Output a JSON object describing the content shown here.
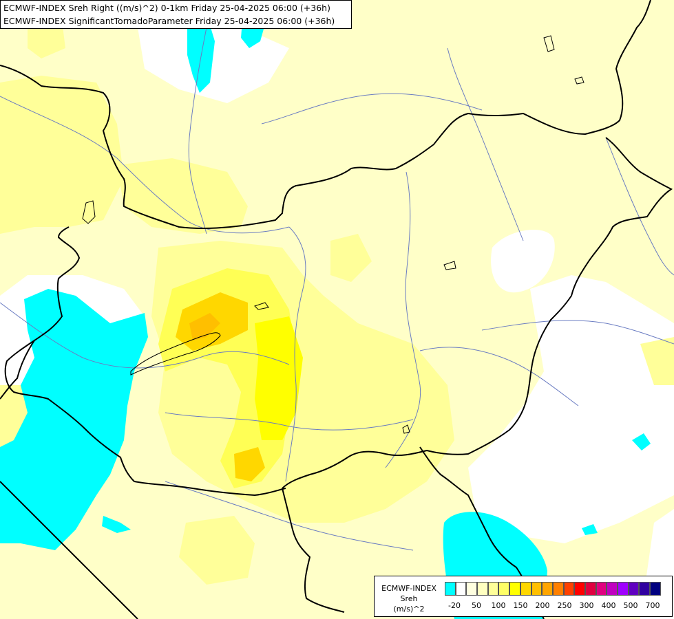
{
  "title": {
    "line1": "ECMWF-INDEX Sreh Right ((m/s)^2) 0-1km Friday 25-04-2025 06:00 (+36h)",
    "line2": "ECMWF-INDEX SignificantTornadoParameter Friday 25-04-2025 06:00 (+36h)"
  },
  "legend": {
    "line1": "ECMWF-INDEX",
    "line2": "Sreh",
    "line3": "(m/s)^2",
    "colors": [
      "#00ffff",
      "#ffffff",
      "#ffffe0",
      "#ffffc0",
      "#ffff99",
      "#ffff66",
      "#ffff00",
      "#ffd700",
      "#ffbf00",
      "#ffa500",
      "#ff8000",
      "#ff4000",
      "#ff0000",
      "#e00040",
      "#e00080",
      "#c000c0",
      "#a000ff",
      "#6000c0",
      "#3000a0",
      "#000080"
    ],
    "ticks": [
      "-20",
      "50",
      "100",
      "150",
      "200",
      "250",
      "300",
      "400",
      "500",
      "700"
    ]
  }
}
